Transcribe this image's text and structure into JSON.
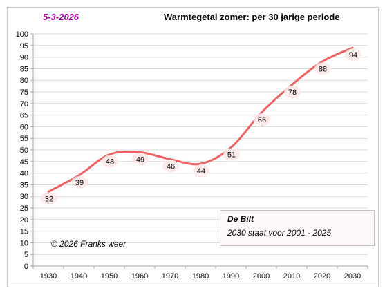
{
  "header": {
    "date": "5-3-2026",
    "title": "Warmtegetal zomer:  per 30 jarige periode"
  },
  "footer": {
    "copyright": "© 2026 Franks weer"
  },
  "info_box": {
    "title": "De Bilt",
    "text": "2030 staat voor 2001 - 2025"
  },
  "colors": {
    "line": "#f06060",
    "date": "#b000b0",
    "label_bg": "#fde9e9",
    "grid": "#d9d9d9"
  },
  "chart_data": {
    "type": "line",
    "title": "Warmtegetal zomer:  per 30 jarige periode",
    "xlabel": "",
    "ylabel": "",
    "x": [
      1930,
      1940,
      1950,
      1960,
      1970,
      1980,
      1990,
      2000,
      2010,
      2020,
      2030
    ],
    "series": [
      {
        "values": [
          32,
          39,
          48,
          49,
          46,
          44,
          51,
          66,
          78,
          88,
          94
        ]
      }
    ],
    "ylim": [
      0,
      100
    ],
    "yticks": [
      0,
      5,
      10,
      15,
      20,
      25,
      30,
      35,
      40,
      45,
      50,
      55,
      60,
      65,
      70,
      75,
      80,
      85,
      90,
      95,
      100
    ],
    "data_labels": [
      "32",
      "39",
      "48",
      "49",
      "46",
      "44",
      "51",
      "66",
      "78",
      "88",
      "94"
    ],
    "smooth": true,
    "grid": true,
    "legend": "none"
  }
}
